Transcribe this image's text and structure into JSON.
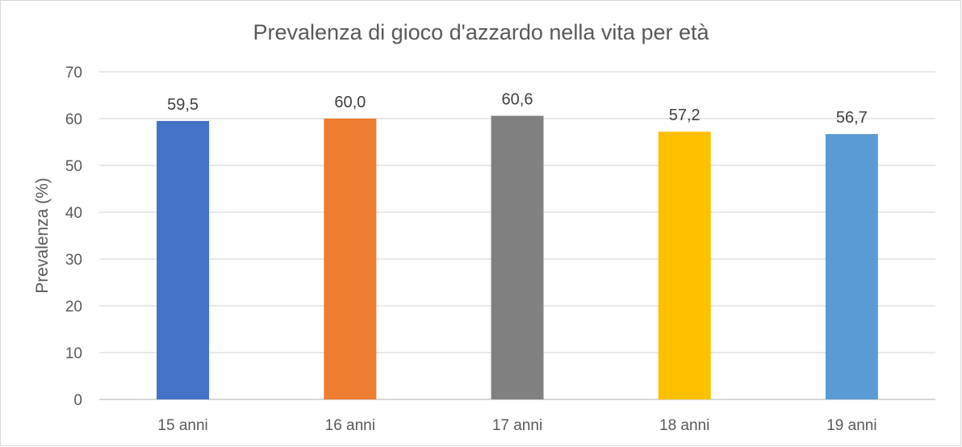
{
  "chart_data": {
    "type": "bar",
    "title": "Prevalenza di gioco d'azzardo nella vita per età",
    "xlabel": "",
    "ylabel": "Prevalenza (%)",
    "categories": [
      "15 anni",
      "16 anni",
      "17 anni",
      "18 anni",
      "19 anni"
    ],
    "values": [
      59.5,
      60.0,
      60.6,
      57.2,
      56.7
    ],
    "data_labels": [
      "59,5",
      "60,0",
      "60,6",
      "57,2",
      "56,7"
    ],
    "bar_colors": [
      "#4472C4",
      "#ED7D31",
      "#808080",
      "#FFC000",
      "#5B9BD5"
    ],
    "ylim": [
      0,
      70
    ],
    "yticks": [
      0,
      10,
      20,
      30,
      40,
      50,
      60,
      70
    ],
    "grid": true,
    "legend": "none"
  }
}
